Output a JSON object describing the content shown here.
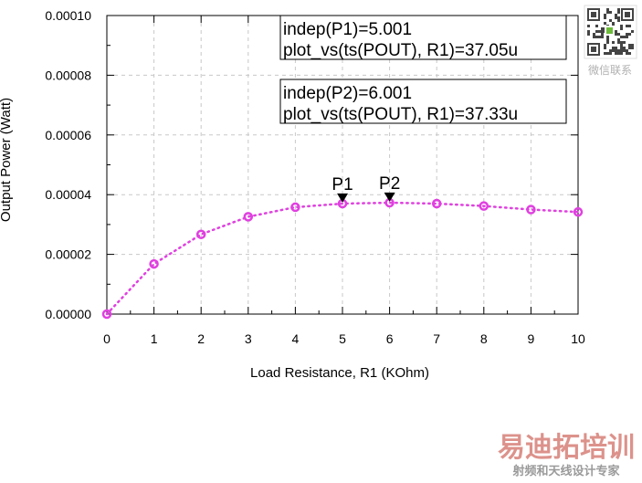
{
  "chart_data": {
    "type": "line",
    "xlabel": "Load Resistance, R1 (KOhm)",
    "ylabel": "Output Power (Watt)",
    "xlim": [
      0,
      10
    ],
    "ylim": [
      0.0,
      0.0001
    ],
    "x_tick_labels": [
      "0",
      "1",
      "2",
      "3",
      "4",
      "5",
      "6",
      "7",
      "8",
      "9",
      "10"
    ],
    "y_tick_labels": [
      "0.00000",
      "0.00002",
      "0.00004",
      "0.00006",
      "0.00008",
      "0.00010"
    ],
    "grid": true,
    "series": [
      {
        "color": "#e040e0",
        "line_style": "dotted",
        "points": [
          {
            "x": 0,
            "y": 0.0
          },
          {
            "x": 1,
            "y": 1.68e-05
          },
          {
            "x": 2,
            "y": 2.67e-05
          },
          {
            "x": 3,
            "y": 3.26e-05
          },
          {
            "x": 4,
            "y": 3.58e-05
          },
          {
            "x": 5,
            "y": 3.7e-05
          },
          {
            "x": 6,
            "y": 3.73e-05
          },
          {
            "x": 7,
            "y": 3.7e-05
          },
          {
            "x": 8,
            "y": 3.62e-05
          },
          {
            "x": 9,
            "y": 3.5e-05
          },
          {
            "x": 10,
            "y": 3.42e-05
          }
        ]
      }
    ],
    "markers": [
      {
        "label": "P1",
        "x": 5.001,
        "y": 3.705e-05
      },
      {
        "label": "P2",
        "x": 6.001,
        "y": 3.733e-05
      }
    ],
    "annotations": [
      {
        "line1": "indep(P1)=5.001",
        "line2": "plot_vs(ts(POUT), R1)=37.05u"
      },
      {
        "line1": "indep(P2)=6.001",
        "line2": "plot_vs(ts(POUT), R1)=37.33u"
      }
    ]
  },
  "watermark": {
    "qr_caption": "微信联系",
    "brand_name": "易迪拓培训",
    "brand_slogan": "射频和天线设计专家",
    "brand_color": "#c0392b"
  }
}
